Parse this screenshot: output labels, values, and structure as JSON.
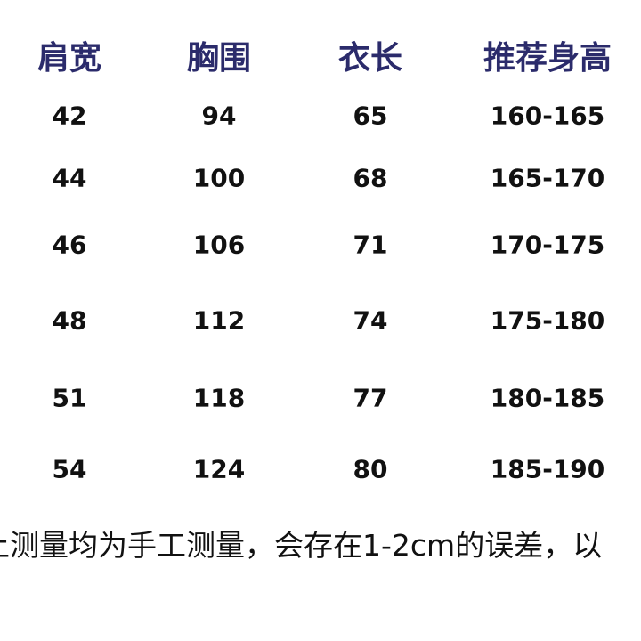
{
  "colors": {
    "header": "#2b2b6b",
    "text": "#111111",
    "background": "#ffffff"
  },
  "table": {
    "headers": [
      "肩宽",
      "胸围",
      "衣长",
      "推荐身高"
    ],
    "rows": [
      [
        "42",
        "94",
        "65",
        "160-165"
      ],
      [
        "44",
        "100",
        "68",
        "165-170"
      ],
      [
        "46",
        "106",
        "71",
        "170-175"
      ],
      [
        "48",
        "112",
        "74",
        "175-180"
      ],
      [
        "51",
        "118",
        "77",
        "180-185"
      ],
      [
        "54",
        "124",
        "80",
        "185-190"
      ]
    ]
  },
  "note": "上测量均为手工测量，会存在1-2cm的误差，以"
}
